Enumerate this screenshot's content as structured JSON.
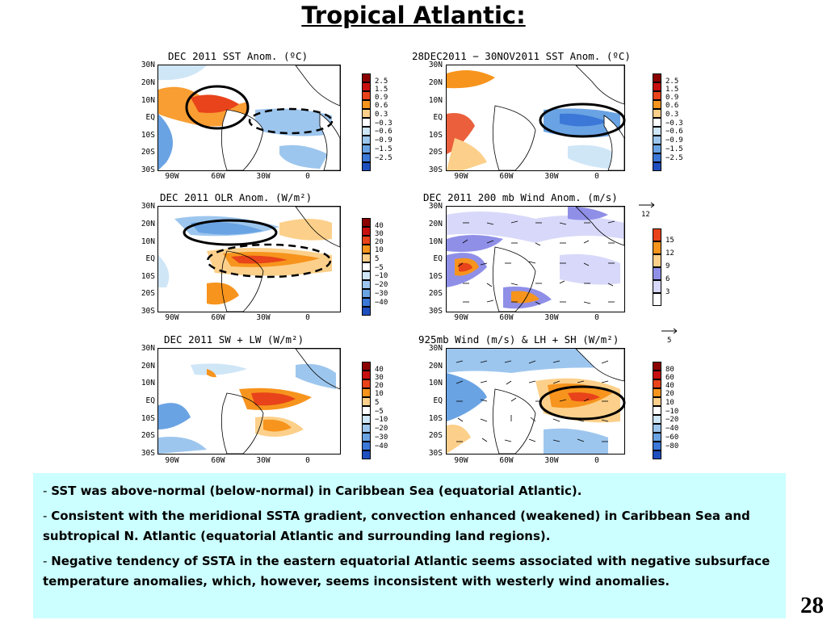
{
  "slide": {
    "title": "Tropical Atlantic:",
    "page_number": "28"
  },
  "axes": {
    "y_ticks": [
      "30N",
      "20N",
      "10N",
      "EQ",
      "10S",
      "20S",
      "30S"
    ],
    "x_ticks": [
      "90W",
      "60W",
      "30W",
      "0"
    ]
  },
  "panels": [
    {
      "title": "DEC 2011 SST Anom. (ºC)",
      "colorbar": [
        "2.5",
        "1.5",
        "0.9",
        "0.6",
        "0.3",
        "−0.3",
        "−0.6",
        "−0.9",
        "−1.5",
        "−2.5"
      ]
    },
    {
      "title": "28DEC2011 − 30NOV2011 SST Anom. (ºC)",
      "colorbar": [
        "2.5",
        "1.5",
        "0.9",
        "0.6",
        "0.3",
        "−0.3",
        "−0.6",
        "−0.9",
        "−1.5",
        "−2.5"
      ]
    },
    {
      "title": "DEC 2011 OLR Anom. (W/m²)",
      "colorbar": [
        "40",
        "30",
        "20",
        "10",
        "5",
        "−5",
        "−10",
        "−20",
        "−30",
        "−40"
      ]
    },
    {
      "title": "DEC 2011 200 mb Wind Anom. (m/s)",
      "reference_vector": "12",
      "colorbar": [
        "15",
        "12",
        "9",
        "6",
        "3"
      ]
    },
    {
      "title": "DEC 2011 SW + LW (W/m²)",
      "colorbar": [
        "40",
        "30",
        "20",
        "10",
        "5",
        "−5",
        "−10",
        "−20",
        "−30",
        "−40"
      ]
    },
    {
      "title": "925mb Wind (m/s) & LH + SH (W/m²)",
      "reference_vector": "5",
      "colorbar": [
        "80",
        "60",
        "40",
        "20",
        "10",
        "−10",
        "−20",
        "−40",
        "−60",
        "−80"
      ]
    }
  ],
  "colors": {
    "warm": [
      "#8b0000",
      "#c81010",
      "#e8431a",
      "#f7941d",
      "#fcd08a"
    ],
    "cool": [
      "#cfe6f7",
      "#9dc6ee",
      "#6aa3e3",
      "#3b78d8",
      "#1f4fbf"
    ],
    "wind": [
      "#e8431a",
      "#f7941d",
      "#fcd08a",
      "#8f8fe8",
      "#d8d8fa"
    ],
    "textbox_bg": "#ccffff"
  },
  "notes": [
    {
      "dash": "- ",
      "text": "SST was above-normal (below-normal) in Caribbean Sea (equatorial Atlantic)."
    },
    {
      "dash": "- ",
      "text": "Consistent with the meridional SSTA gradient, convection enhanced (weakened) in Caribbean Sea and subtropical N. Atlantic (equatorial Atlantic and surrounding land regions)."
    },
    {
      "dash": "- ",
      "text": "Negative tendency of SSTA in the eastern equatorial Atlantic seems associated with negative subsurface temperature anomalies, which, however, seems inconsistent with westerly wind anomalies."
    }
  ]
}
